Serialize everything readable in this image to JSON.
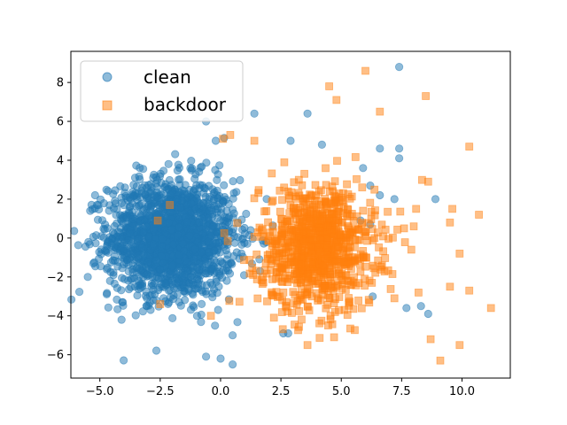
{
  "chart_data": {
    "type": "scatter",
    "title": "",
    "xlabel": "",
    "ylabel": "",
    "xlim": [
      -6.2,
      12.0
    ],
    "ylim": [
      -7.2,
      9.6
    ],
    "xticks": [
      -5.0,
      -2.5,
      0.0,
      2.5,
      5.0,
      7.5,
      10.0
    ],
    "xtick_labels": [
      "−5.0",
      "−2.5",
      "0.0",
      "2.5",
      "5.0",
      "7.5",
      "10.0"
    ],
    "yticks": [
      -6,
      -4,
      -2,
      0,
      2,
      4,
      6,
      8
    ],
    "ytick_labels": [
      "−6",
      "−4",
      "−2",
      "0",
      "2",
      "4",
      "6",
      "8"
    ],
    "grid": false,
    "legend_position": "top-left",
    "series": [
      {
        "name": "clean",
        "marker": "circle",
        "color": "#1f77b4",
        "center": [
          -2.0,
          0.0
        ],
        "spread": [
          1.3,
          1.5
        ],
        "count": 1800,
        "extra_points": [
          [
            7.4,
            8.8
          ],
          [
            1.4,
            6.4
          ],
          [
            3.6,
            6.4
          ],
          [
            -0.6,
            6.0
          ],
          [
            -0.2,
            5.0
          ],
          [
            2.9,
            5.0
          ],
          [
            4.2,
            4.8
          ],
          [
            6.6,
            4.6
          ],
          [
            7.4,
            4.6
          ],
          [
            7.4,
            4.1
          ],
          [
            5.9,
            3.6
          ],
          [
            6.2,
            2.7
          ],
          [
            6.6,
            2.2
          ],
          [
            7.2,
            2.0
          ],
          [
            8.9,
            2.0
          ],
          [
            5.8,
            0.9
          ],
          [
            6.2,
            0.7
          ],
          [
            8.3,
            -3.5
          ],
          [
            8.6,
            -3.9
          ],
          [
            7.7,
            -3.6
          ],
          [
            -5.5,
            -2.0
          ],
          [
            -4.1,
            -4.2
          ],
          [
            -0.6,
            -6.1
          ],
          [
            0.0,
            -6.2
          ],
          [
            0.5,
            -6.5
          ],
          [
            0.5,
            -5.0
          ],
          [
            2.6,
            -4.9
          ],
          [
            2.8,
            -4.9
          ],
          [
            6.3,
            -3.0
          ],
          [
            -5.4,
            1.4
          ],
          [
            -5.2,
            2.2
          ]
        ]
      },
      {
        "name": "backdoor",
        "marker": "square",
        "color": "#ff7f0e",
        "center": [
          4.0,
          -0.5
        ],
        "spread": [
          1.2,
          1.6
        ],
        "count": 900,
        "extra_points": [
          [
            6.0,
            8.6
          ],
          [
            8.5,
            7.3
          ],
          [
            4.5,
            7.8
          ],
          [
            4.8,
            7.1
          ],
          [
            6.6,
            6.5
          ],
          [
            10.3,
            4.7
          ],
          [
            8.6,
            2.9
          ],
          [
            9.6,
            1.5
          ],
          [
            10.7,
            1.2
          ],
          [
            8.1,
            1.5
          ],
          [
            7.9,
            -0.6
          ],
          [
            9.5,
            0.8
          ],
          [
            9.9,
            -0.8
          ],
          [
            9.5,
            -2.5
          ],
          [
            10.3,
            -2.7
          ],
          [
            11.2,
            -3.6
          ],
          [
            8.7,
            -5.2
          ],
          [
            9.1,
            -6.3
          ],
          [
            9.9,
            -5.5
          ],
          [
            7.2,
            -3.1
          ],
          [
            8.2,
            -2.8
          ],
          [
            3.6,
            -5.5
          ],
          [
            4.7,
            -5.1
          ],
          [
            7.6,
            0.5
          ],
          [
            8.0,
            0.6
          ],
          [
            -0.4,
            -4.0
          ],
          [
            -2.1,
            1.7
          ],
          [
            -2.6,
            0.9
          ],
          [
            -2.5,
            -3.4
          ],
          [
            0.1,
            5.1
          ],
          [
            1.4,
            5.0
          ],
          [
            0.4,
            5.3
          ]
        ]
      }
    ]
  },
  "legend": {
    "items": [
      "clean",
      "backdoor"
    ]
  }
}
